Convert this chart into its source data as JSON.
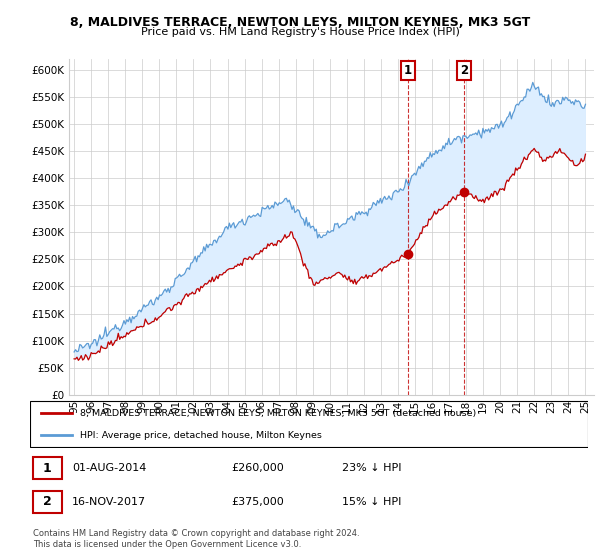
{
  "title_line1": "8, MALDIVES TERRACE, NEWTON LEYS, MILTON KEYNES, MK3 5GT",
  "title_line2": "Price paid vs. HM Land Registry's House Price Index (HPI)",
  "ylabel_ticks": [
    "£0",
    "£50K",
    "£100K",
    "£150K",
    "£200K",
    "£250K",
    "£300K",
    "£350K",
    "£400K",
    "£450K",
    "£500K",
    "£550K",
    "£600K"
  ],
  "ylim": [
    0,
    620000
  ],
  "yticks": [
    0,
    50000,
    100000,
    150000,
    200000,
    250000,
    300000,
    350000,
    400000,
    450000,
    500000,
    550000,
    600000
  ],
  "sale1_year": 2014.58,
  "sale1_price": 260000,
  "sale1_label": "1",
  "sale1_date": "01-AUG-2014",
  "sale1_price_str": "£260,000",
  "sale1_pct": "23% ↓ HPI",
  "sale2_year": 2017.88,
  "sale2_price": 375000,
  "sale2_label": "2",
  "sale2_date": "16-NOV-2017",
  "sale2_price_str": "£375,000",
  "sale2_pct": "15% ↓ HPI",
  "hpi_color": "#5b9bd5",
  "hpi_fill_color": "#ddeeff",
  "price_color": "#c00000",
  "sale_marker_color": "#c00000",
  "annotation_box_color": "#c00000",
  "bg_color": "#ffffff",
  "grid_color": "#cccccc",
  "copyright_text": "Contains HM Land Registry data © Crown copyright and database right 2024.\nThis data is licensed under the Open Government Licence v3.0.",
  "legend_label1": "8, MALDIVES TERRACE, NEWTON LEYS, MILTON KEYNES, MK3 5GT (detached house)",
  "legend_label2": "HPI: Average price, detached house, Milton Keynes",
  "xlim_left": 1994.7,
  "xlim_right": 2025.5
}
